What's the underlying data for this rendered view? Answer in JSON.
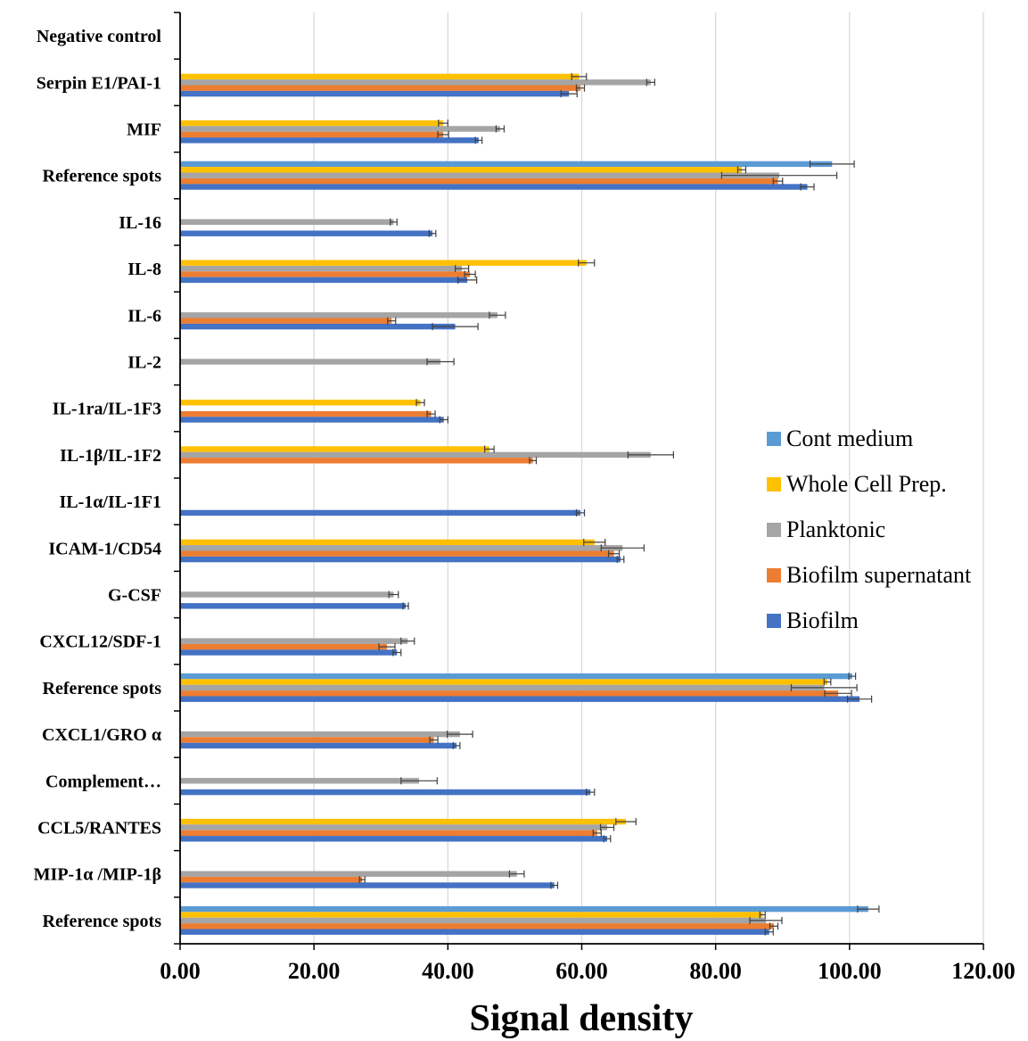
{
  "chart_data": {
    "type": "bar",
    "orientation": "horizontal",
    "title": "",
    "xlabel": "Signal density",
    "ylabel": "",
    "xlim": [
      0,
      120
    ],
    "x_ticks": [
      "0.00",
      "20.00",
      "40.00",
      "60.00",
      "80.00",
      "100.00",
      "120.00"
    ],
    "grid": "vertical",
    "legend_position": "right-middle",
    "categories": [
      "Negative control",
      "Serpin E1/PAI-1",
      "MIF",
      "Reference spots",
      "IL-16",
      "IL-8",
      "IL-6",
      "IL-2",
      "IL-1ra/IL-1F3",
      "IL-1β/IL-1F2",
      "IL-1α/IL-1F1",
      "ICAM-1/CD54",
      "G-CSF",
      "CXCL12/SDF-1",
      "Reference spots",
      "CXCL1/GRO α",
      "Complement…",
      "CCL5/RANTES",
      "MIP-1α /MIP-1β",
      "Reference spots"
    ],
    "series": [
      {
        "name": "Cont medium",
        "color": "#5B9BD5",
        "values": [
          0,
          0,
          0,
          97.4,
          0,
          0,
          0,
          0,
          0,
          0,
          0,
          0,
          0,
          0,
          100.4,
          0,
          0,
          0,
          0,
          102.8
        ],
        "errors": [
          0,
          0,
          0,
          3.3,
          0,
          0,
          0,
          0,
          0,
          0,
          0,
          0,
          0,
          0,
          0.5,
          0,
          0,
          0,
          0,
          1.6
        ]
      },
      {
        "name": "Whole Cell Prep.",
        "color": "#FFC000",
        "values": [
          0,
          59.6,
          39.3,
          83.9,
          0,
          60.7,
          0,
          0,
          35.9,
          46.2,
          0,
          61.9,
          0,
          0,
          96.7,
          0,
          0,
          66.6,
          0,
          87.0
        ],
        "errors": [
          0,
          1.1,
          0.7,
          0.6,
          0,
          1.2,
          0,
          0,
          0.6,
          0.7,
          0,
          1.6,
          0,
          0,
          0.5,
          0,
          0,
          1.5,
          0,
          0.4
        ]
      },
      {
        "name": "Planktonic",
        "color": "#A5A5A5",
        "values": [
          0,
          70.3,
          47.8,
          89.5,
          31.9,
          42.1,
          47.4,
          38.9,
          0,
          70.3,
          0,
          66.1,
          31.9,
          34.0,
          96.2,
          41.8,
          35.7,
          63.8,
          50.3,
          87.5
        ],
        "errors": [
          0,
          0.6,
          0.6,
          8.6,
          0.5,
          1.0,
          1.2,
          2.0,
          0,
          3.4,
          0,
          3.2,
          0.7,
          1.0,
          4.9,
          1.9,
          2.7,
          1.0,
          1.1,
          2.4
        ]
      },
      {
        "name": "Biofilm supernatant",
        "color": "#ED7D31",
        "values": [
          0,
          59.8,
          39.3,
          89.3,
          0,
          43.3,
          31.6,
          0,
          37.5,
          52.7,
          0,
          64.8,
          0,
          30.9,
          98.3,
          37.9,
          0,
          62.3,
          27.2,
          88.7
        ],
        "errors": [
          0,
          0.6,
          0.8,
          0.7,
          0,
          0.8,
          0.6,
          0,
          0.6,
          0.5,
          0,
          0.8,
          0,
          1.2,
          2.0,
          0.6,
          0,
          0.6,
          0.4,
          0.6
        ]
      },
      {
        "name": "Biofilm",
        "color": "#4472C4",
        "values": [
          0,
          58.1,
          44.6,
          93.7,
          37.7,
          42.9,
          41.1,
          0,
          39.4,
          0,
          59.8,
          65.8,
          33.7,
          32.4,
          101.5,
          41.3,
          61.3,
          63.8,
          55.9,
          88.0
        ],
        "errors": [
          0,
          1.2,
          0.5,
          1.0,
          0.5,
          1.4,
          3.4,
          0,
          0.6,
          0,
          0.6,
          0.5,
          0.4,
          0.6,
          1.8,
          0.5,
          0.6,
          0.5,
          0.5,
          0.6
        ]
      }
    ]
  }
}
